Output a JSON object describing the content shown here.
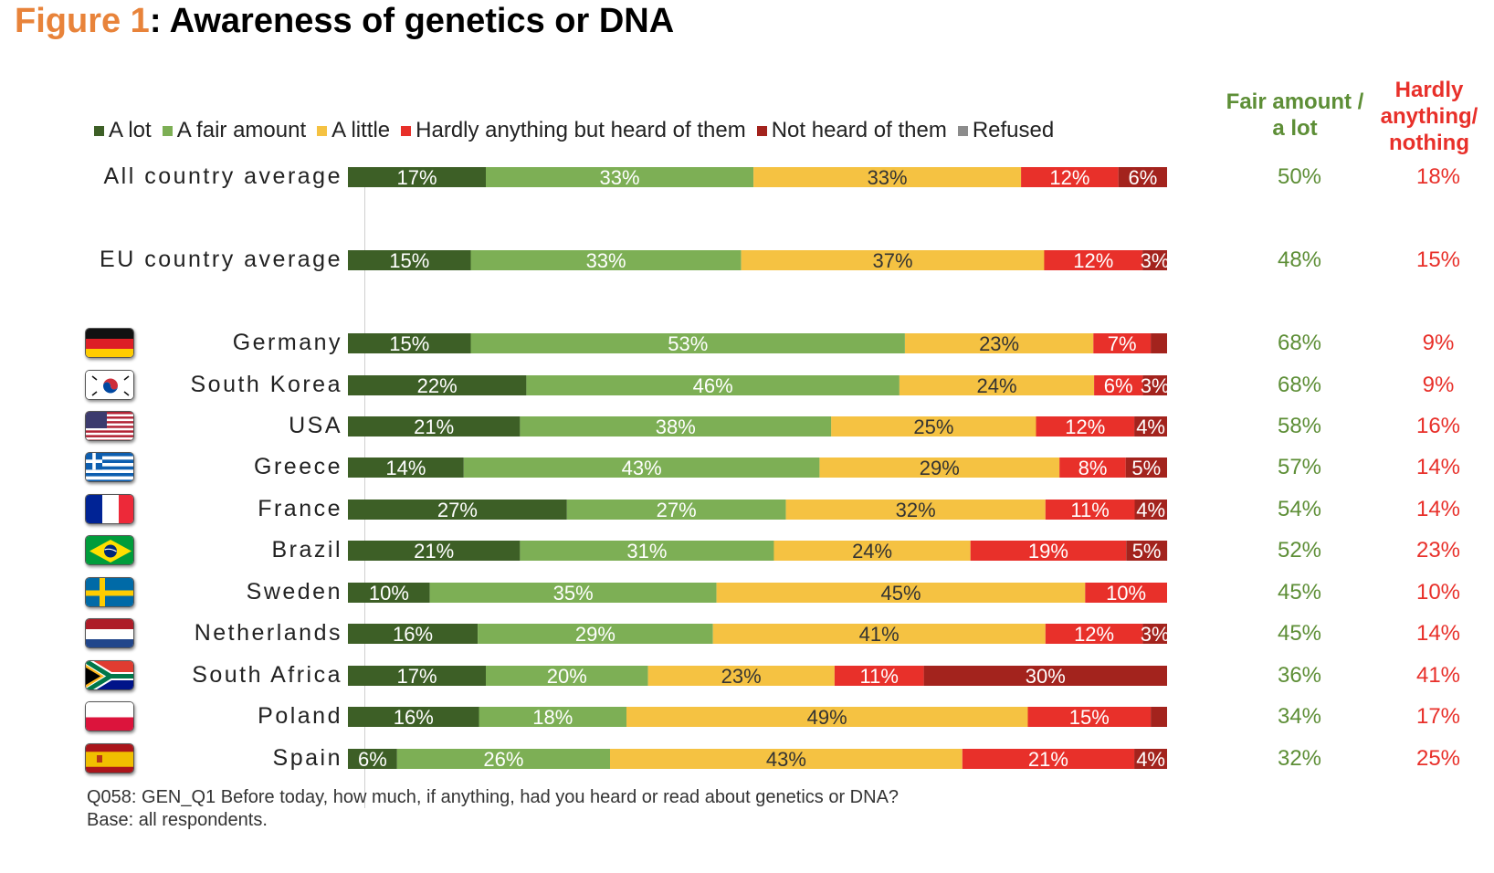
{
  "title": {
    "prefix": "Figure 1",
    "text": ": Awareness of genetics or DNA"
  },
  "legend": [
    {
      "label": "A lot",
      "color": "#3d5f26"
    },
    {
      "label": "A fair amount",
      "color": "#7daf55"
    },
    {
      "label": "A little",
      "color": "#f5c242"
    },
    {
      "label": "Hardly anything but heard of them",
      "color": "#e8302a"
    },
    {
      "label": "Not heard of them",
      "color": "#a3231d"
    },
    {
      "label": "Refused",
      "color": "#8c8c8c"
    }
  ],
  "columns": {
    "fair": "Fair amount / a lot",
    "hardly": "Hardly anything/ nothing"
  },
  "chart_data": {
    "type": "bar",
    "orientation": "horizontal-stacked-100",
    "categories": [
      "All country average",
      "EU country average",
      "Germany",
      "South Korea",
      "USA",
      "Greece",
      "France",
      "Brazil",
      "Sweden",
      "Netherlands",
      "South Africa",
      "Poland",
      "Spain"
    ],
    "series": [
      {
        "name": "A lot",
        "values": [
          17,
          15,
          15,
          22,
          21,
          14,
          27,
          21,
          10,
          16,
          17,
          16,
          6
        ],
        "labels": [
          "17%",
          "15%",
          "15%",
          "22%",
          "21%",
          "14%",
          "27%",
          "21%",
          "10%",
          "16%",
          "17%",
          "16%",
          "6%"
        ]
      },
      {
        "name": "A fair amount",
        "values": [
          33,
          33,
          53,
          46,
          38,
          43,
          27,
          31,
          35,
          29,
          20,
          18,
          26
        ],
        "labels": [
          "33%",
          "33%",
          "53%",
          "46%",
          "38%",
          "43%",
          "27%",
          "31%",
          "35%",
          "29%",
          "20%",
          "18%",
          "26%"
        ]
      },
      {
        "name": "A little",
        "values": [
          33,
          37,
          23,
          24,
          25,
          29,
          32,
          24,
          45,
          41,
          23,
          49,
          43
        ],
        "labels": [
          "33%",
          "37%",
          "23%",
          "24%",
          "25%",
          "29%",
          "32%",
          "24%",
          "45%",
          "41%",
          "23%",
          "49%",
          "43%"
        ]
      },
      {
        "name": "Hardly anything but heard of them",
        "values": [
          12,
          12,
          7,
          6,
          12,
          8,
          11,
          19,
          10,
          12,
          11,
          15,
          21
        ],
        "labels": [
          "12%",
          "12%",
          "7%",
          "6%",
          "12%",
          "8%",
          "11%",
          "19%",
          "10%",
          "12%",
          "11%",
          "15%",
          "21%"
        ]
      },
      {
        "name": "Not heard of them",
        "values": [
          6,
          3,
          2,
          3,
          4,
          5,
          4,
          5,
          0,
          3,
          30,
          2,
          4
        ],
        "labels": [
          "6%",
          "3%",
          "",
          "3%",
          "4%",
          "5%",
          "4%",
          "5%",
          "",
          "3%",
          "30%",
          "",
          "4%"
        ]
      },
      {
        "name": "Refused",
        "values": [
          0,
          0,
          0,
          0,
          0,
          0,
          0,
          0,
          0,
          0,
          0,
          0,
          0
        ],
        "labels": [
          "",
          "",
          "",
          "",
          "",
          "",
          "",
          "",
          "",
          "",
          "",
          "",
          ""
        ]
      }
    ],
    "fair_amount_a_lot": [
      "50%",
      "48%",
      "68%",
      "68%",
      "58%",
      "57%",
      "54%",
      "52%",
      "45%",
      "45%",
      "36%",
      "34%",
      "32%"
    ],
    "hardly_anything_nothing": [
      "18%",
      "15%",
      "9%",
      "9%",
      "16%",
      "14%",
      "14%",
      "23%",
      "10%",
      "14%",
      "41%",
      "17%",
      "25%"
    ],
    "flags": [
      "",
      "",
      "germany-flag",
      "south-korea-flag",
      "usa-flag",
      "greece-flag",
      "france-flag",
      "brazil-flag",
      "sweden-flag",
      "netherlands-flag",
      "south-africa-flag",
      "poland-flag",
      "spain-flag"
    ]
  },
  "footnote": {
    "line1": "Q058: GEN_Q1 Before today, how much, if anything, had you heard or read about genetics or DNA?",
    "line2": "Base: all respondents."
  }
}
